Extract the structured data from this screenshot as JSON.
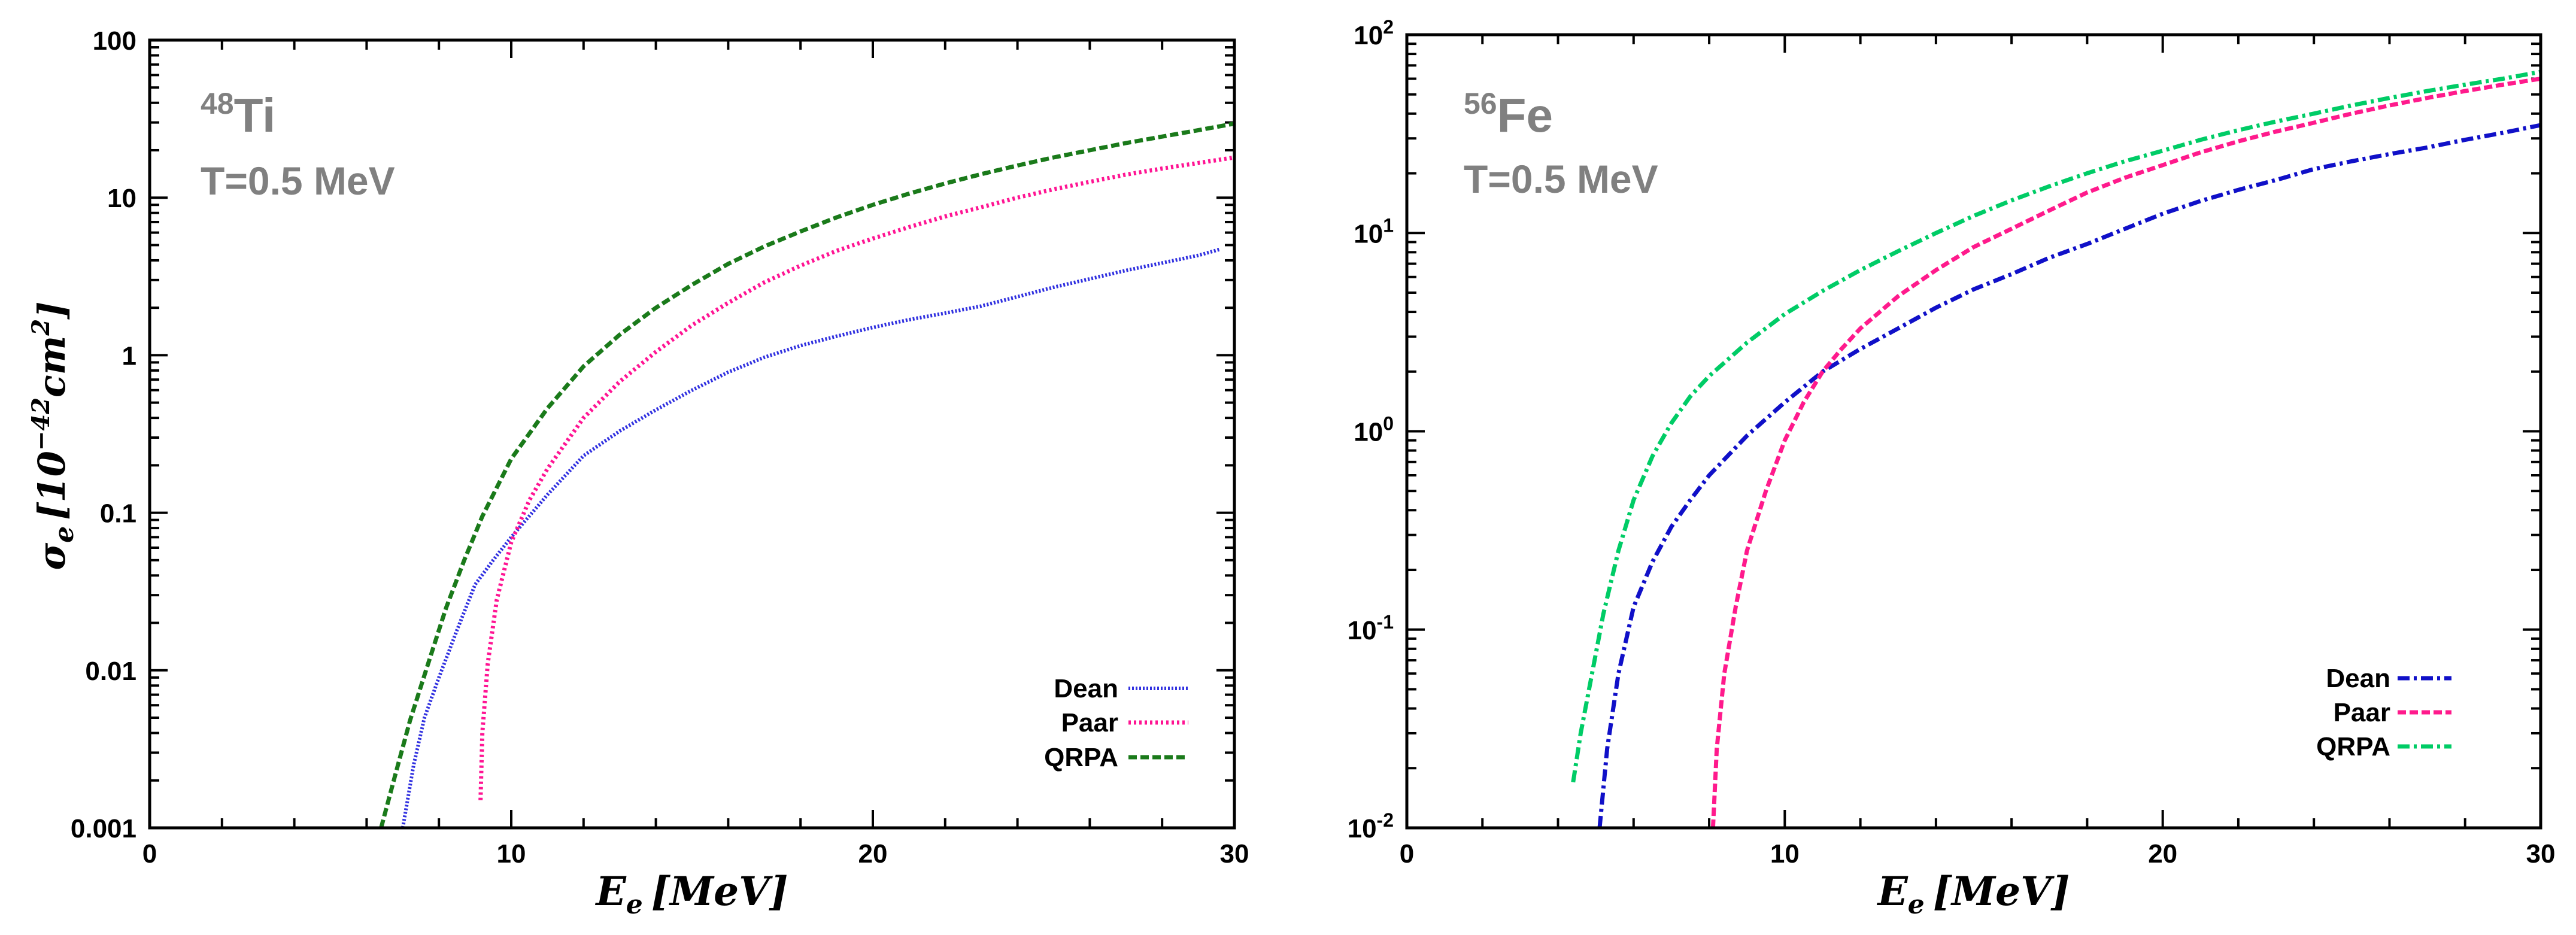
{
  "chart_data": [
    {
      "type": "line",
      "y_scale": "log",
      "nucleus": {
        "mass": "48",
        "symbol": "Ti"
      },
      "temperature": "T=0.5 MeV",
      "ylabel": {
        "sigma": "σ",
        "sub": "e",
        "open": "[10",
        "exp": "−42",
        "cm": "cm",
        "cmexp": "2",
        "close": "]"
      },
      "xlabel": {
        "E": "E",
        "sub": "e",
        "unit": "[MeV]"
      },
      "xlim": [
        0,
        30
      ],
      "ylim": [
        0.001,
        100
      ],
      "xticks": [
        0,
        10,
        20,
        30
      ],
      "xtick_labels": [
        "0",
        "10",
        "20",
        "30"
      ],
      "yticks": [
        0.001,
        0.01,
        0.1,
        1,
        10,
        100
      ],
      "ytick_labels": [
        "0.001",
        "0.01",
        "0.1",
        "1",
        "10",
        "100"
      ],
      "ytick_style": "decimal",
      "legend_position": "bottom-right",
      "series": [
        {
          "name": "Dean",
          "color": "#3030e0",
          "dash": "dotted-fine",
          "x": [
            7.0,
            7.3,
            7.6,
            8.0,
            8.5,
            9.0,
            9.5,
            10.0,
            11.0,
            12.0,
            13.0,
            14.0,
            15.0,
            16.0,
            17.0,
            18.0,
            19.0,
            20.0,
            21.0,
            22.0,
            23.0,
            24.0,
            25.0,
            26.0,
            27.0,
            28.0,
            29.0,
            29.6
          ],
          "y": [
            0.001,
            0.0025,
            0.005,
            0.009,
            0.018,
            0.035,
            0.05,
            0.07,
            0.13,
            0.23,
            0.33,
            0.45,
            0.6,
            0.78,
            0.97,
            1.15,
            1.32,
            1.5,
            1.68,
            1.85,
            2.05,
            2.35,
            2.7,
            3.05,
            3.45,
            3.85,
            4.3,
            4.7
          ]
        },
        {
          "name": "Paar",
          "color": "#ff1493",
          "dash": "dotted",
          "x": [
            9.15,
            9.2,
            9.35,
            9.6,
            10.0,
            10.5,
            11.0,
            12.0,
            13.0,
            14.0,
            15.0,
            16.0,
            17.0,
            18.0,
            19.0,
            20.0,
            21.0,
            22.0,
            23.0,
            24.0,
            25.0,
            26.0,
            27.0,
            28.0,
            29.0,
            30.0
          ],
          "y": [
            0.0015,
            0.004,
            0.011,
            0.028,
            0.065,
            0.12,
            0.19,
            0.4,
            0.68,
            1.05,
            1.55,
            2.15,
            2.9,
            3.7,
            4.6,
            5.5,
            6.5,
            7.6,
            8.7,
            10.0,
            11.3,
            12.6,
            14.0,
            15.3,
            16.6,
            18.0
          ]
        },
        {
          "name": "QRPA",
          "color": "#1a7a1a",
          "dash": "dashed",
          "x": [
            6.4,
            6.8,
            7.2,
            7.7,
            8.2,
            8.7,
            9.2,
            10.0,
            11.0,
            12.0,
            13.0,
            14.0,
            15.0,
            16.0,
            17.0,
            18.0,
            19.0,
            20.0,
            21.0,
            22.0,
            23.0,
            24.0,
            25.0,
            26.0,
            27.0,
            28.0,
            29.0,
            30.0
          ],
          "y": [
            0.001,
            0.0022,
            0.0048,
            0.011,
            0.025,
            0.05,
            0.095,
            0.22,
            0.46,
            0.85,
            1.35,
            2.0,
            2.8,
            3.8,
            4.9,
            6.1,
            7.5,
            9.0,
            10.6,
            12.3,
            14.1,
            16.0,
            18.0,
            20.0,
            22.2,
            24.4,
            26.8,
            29.5
          ]
        }
      ]
    },
    {
      "type": "line",
      "y_scale": "log",
      "nucleus": {
        "mass": "56",
        "symbol": "Fe"
      },
      "temperature": "T=0.5 MeV",
      "xlabel": {
        "E": "E",
        "sub": "e",
        "unit": "[MeV]"
      },
      "xlim": [
        0,
        30
      ],
      "ylim": [
        0.01,
        100
      ],
      "xticks": [
        0,
        10,
        20,
        30
      ],
      "xtick_labels": [
        "0",
        "10",
        "20",
        "30"
      ],
      "yticks": [
        0.01,
        0.1,
        1,
        10,
        100
      ],
      "ytick_labels": [
        {
          "base": "10",
          "exp": "-2"
        },
        {
          "base": "10",
          "exp": "-1"
        },
        {
          "base": "10",
          "exp": "0"
        },
        {
          "base": "10",
          "exp": "1"
        },
        {
          "base": "10",
          "exp": "2"
        }
      ],
      "ytick_style": "power",
      "legend_position": "bottom-right",
      "series": [
        {
          "name": "Dean",
          "color": "#1010c8",
          "dash": "dash-dot",
          "x": [
            5.1,
            5.3,
            5.6,
            6.0,
            6.5,
            7.0,
            7.5,
            8.0,
            9.0,
            10.0,
            11.0,
            12.0,
            13.0,
            14.0,
            15.0,
            16.0,
            17.0,
            18.0,
            19.0,
            20.0,
            21.0,
            22.0,
            23.0,
            24.0,
            25.0,
            26.0,
            27.0,
            28.0,
            29.0,
            30.0
          ],
          "y": [
            0.01,
            0.025,
            0.06,
            0.13,
            0.22,
            0.33,
            0.45,
            0.6,
            0.95,
            1.4,
            2.0,
            2.6,
            3.3,
            4.2,
            5.2,
            6.2,
            7.5,
            8.8,
            10.5,
            12.5,
            14.5,
            16.5,
            18.5,
            21.0,
            23.0,
            25.0,
            27.0,
            29.5,
            32.0,
            35.0
          ]
        },
        {
          "name": "Paar",
          "color": "#ff1a8c",
          "dash": "dashed",
          "x": [
            8.1,
            8.2,
            8.4,
            8.7,
            9.0,
            9.5,
            10.0,
            10.5,
            11.0,
            11.5,
            12.0,
            13.0,
            14.0,
            15.0,
            16.0,
            17.0,
            18.0,
            19.0,
            20.0,
            21.0,
            22.0,
            23.0,
            24.0,
            25.0,
            26.0,
            27.0,
            28.0,
            29.0,
            30.0
          ],
          "y": [
            0.01,
            0.025,
            0.06,
            0.13,
            0.25,
            0.5,
            0.9,
            1.4,
            2.0,
            2.6,
            3.3,
            4.8,
            6.5,
            8.5,
            10.5,
            13.0,
            16.0,
            19.0,
            22.0,
            25.5,
            29.0,
            32.5,
            36.0,
            40.0,
            44.0,
            48.0,
            52.0,
            56.0,
            60.0
          ]
        },
        {
          "name": "QRPA",
          "color": "#00cc66",
          "dash": "dash-dot",
          "x": [
            4.4,
            4.6,
            4.9,
            5.2,
            5.6,
            6.0,
            6.5,
            7.0,
            7.5,
            8.0,
            9.0,
            10.0,
            11.0,
            12.0,
            13.0,
            14.0,
            15.0,
            16.0,
            17.0,
            18.0,
            19.0,
            20.0,
            21.0,
            22.0,
            23.0,
            24.0,
            25.0,
            26.0,
            27.0,
            28.0,
            29.0,
            30.0
          ],
          "y": [
            0.017,
            0.03,
            0.06,
            0.12,
            0.25,
            0.45,
            0.75,
            1.1,
            1.5,
            1.9,
            2.8,
            3.9,
            5.1,
            6.5,
            8.1,
            10.0,
            12.2,
            14.6,
            17.2,
            20.0,
            23.0,
            26.0,
            29.5,
            33.0,
            36.5,
            40.0,
            44.0,
            48.0,
            52.0,
            56.0,
            60.0,
            65.0
          ]
        }
      ]
    }
  ]
}
